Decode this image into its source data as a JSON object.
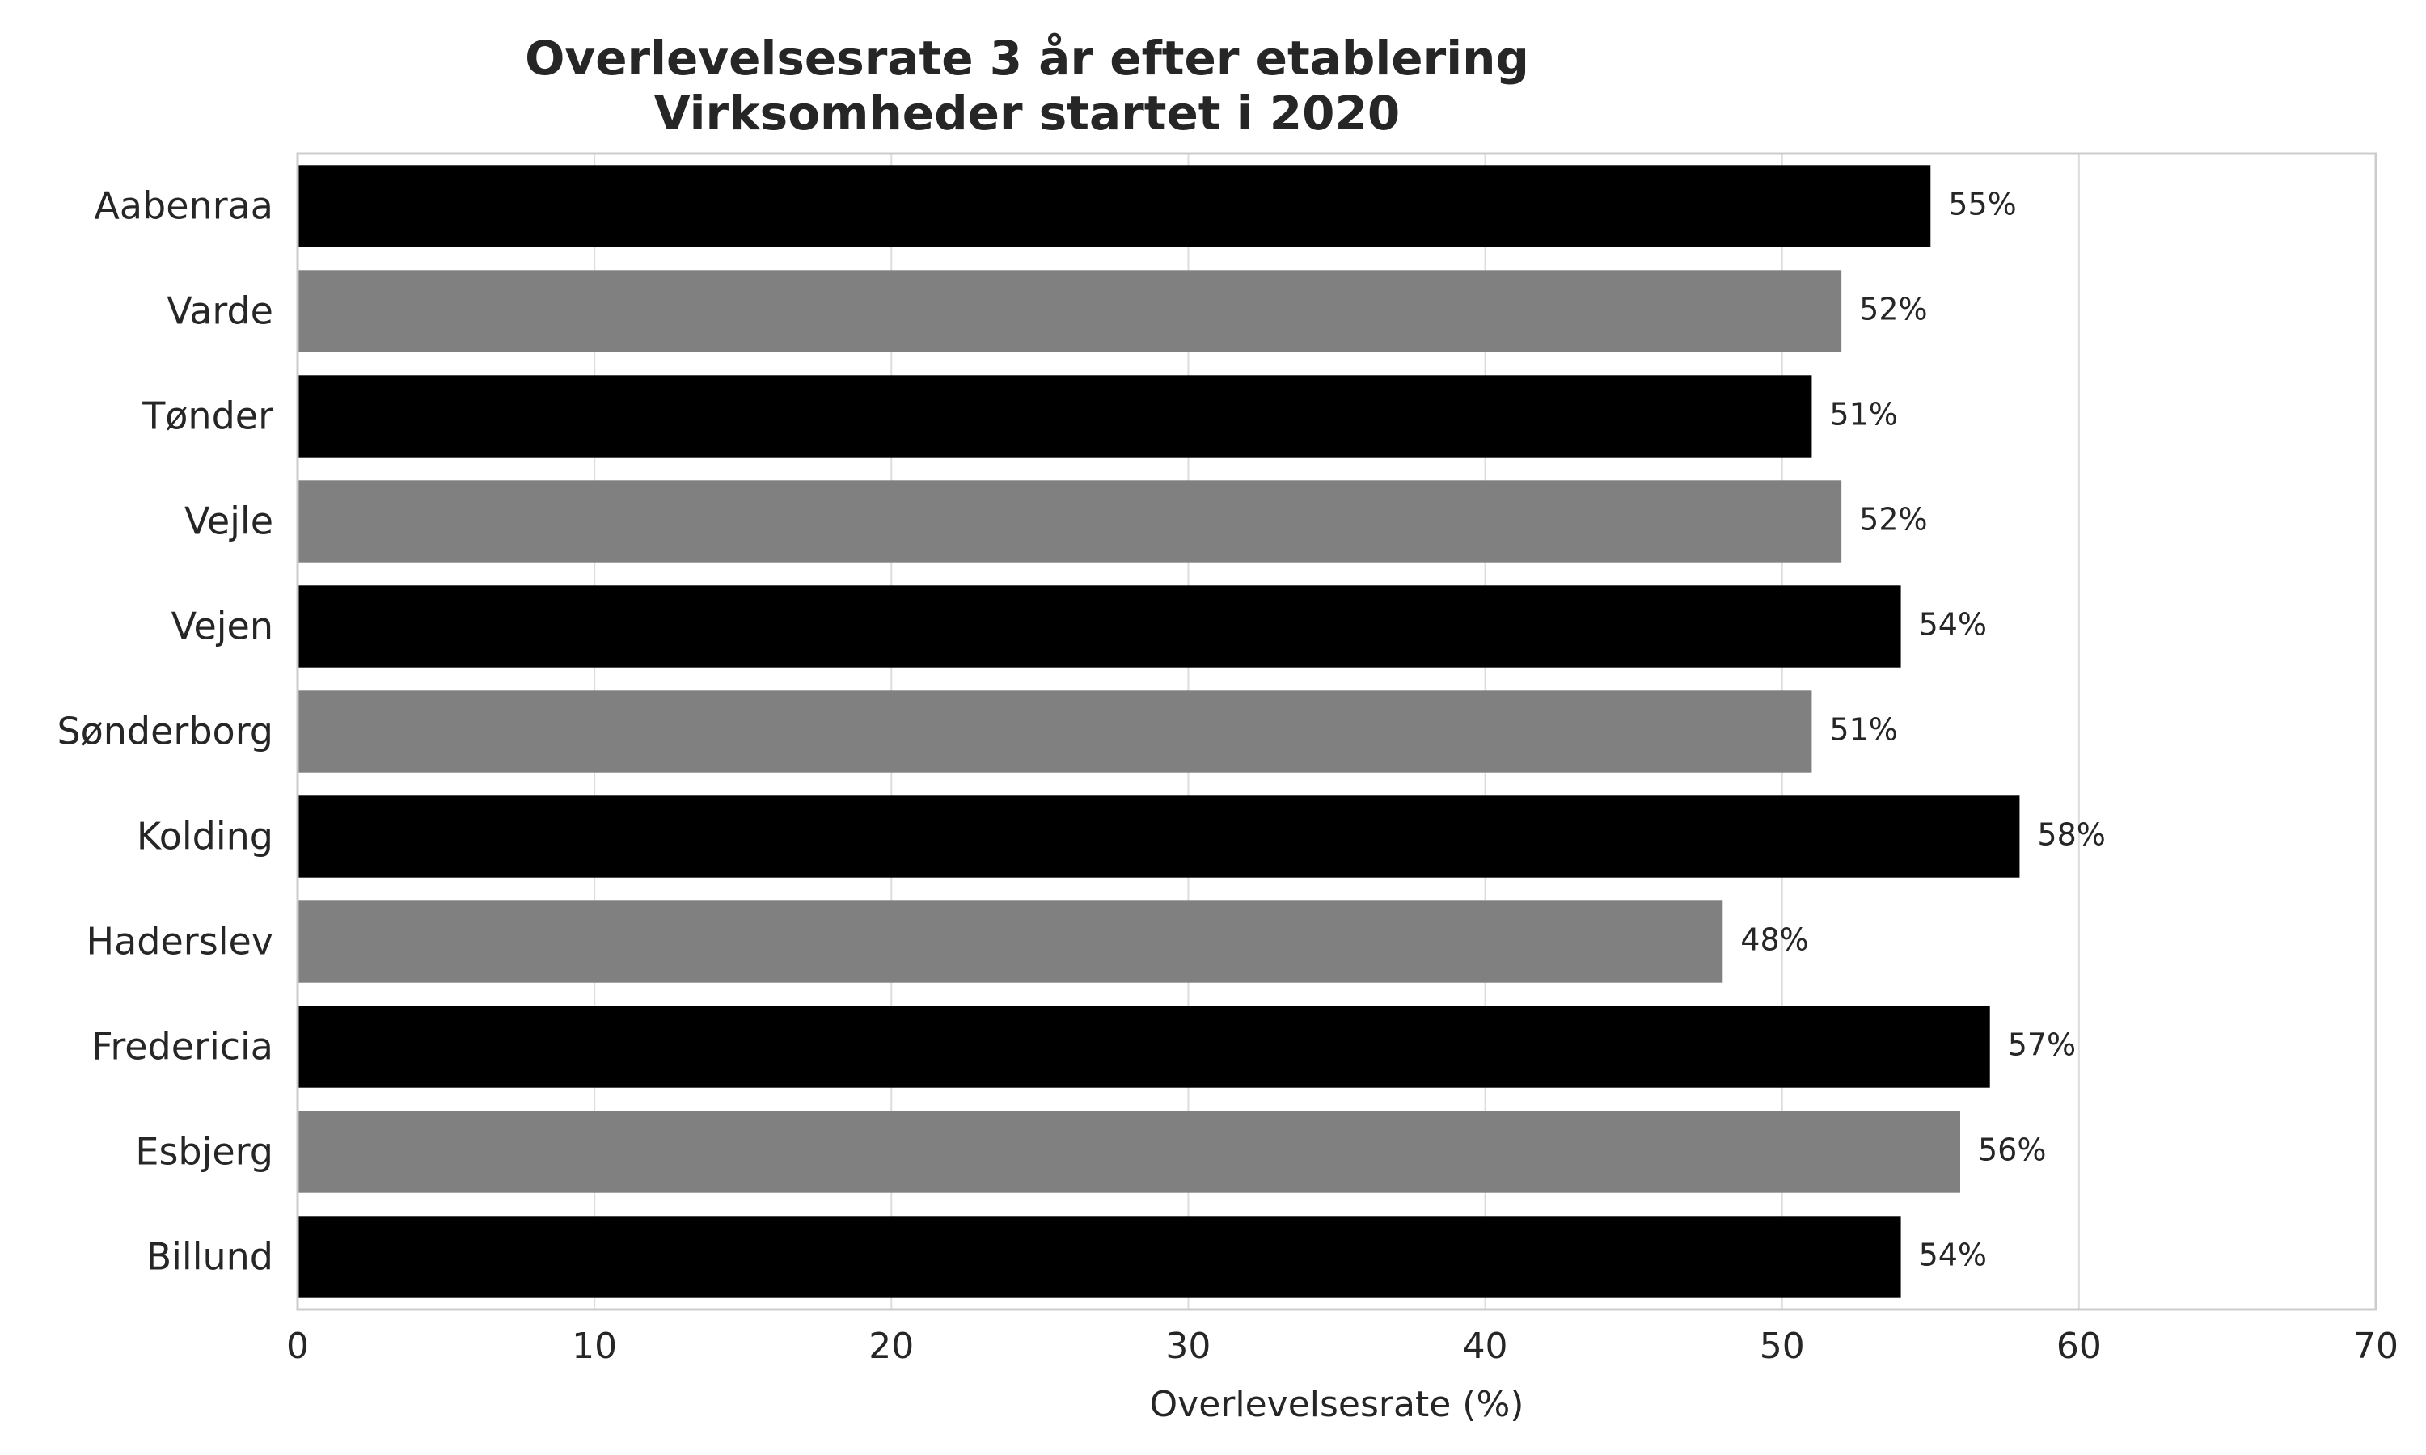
{
  "chart_data": {
    "type": "bar",
    "orientation": "horizontal",
    "title": "Overlevelsesrate 3 år efter etablering",
    "subtitle": "Virksomheder startet i 2020",
    "xlabel": "Overlevelsesrate (%)",
    "ylabel": "",
    "xlim": [
      0,
      70
    ],
    "xticks": [
      0,
      10,
      20,
      30,
      40,
      50,
      60,
      70
    ],
    "grid": true,
    "legend": "none",
    "categories": [
      "Aabenraa",
      "Varde",
      "Tønder",
      "Vejle",
      "Vejen",
      "Sønderborg",
      "Kolding",
      "Haderslev",
      "Fredericia",
      "Esbjerg",
      "Billund"
    ],
    "values": [
      55,
      52,
      51,
      52,
      54,
      51,
      58,
      48,
      57,
      56,
      54
    ],
    "data_labels": [
      "55%",
      "52%",
      "51%",
      "52%",
      "54%",
      "51%",
      "58%",
      "48%",
      "57%",
      "56%",
      "54%"
    ],
    "bar_colors": [
      "#000000",
      "#808080",
      "#000000",
      "#808080",
      "#000000",
      "#808080",
      "#000000",
      "#808080",
      "#000000",
      "#808080",
      "#000000"
    ]
  }
}
